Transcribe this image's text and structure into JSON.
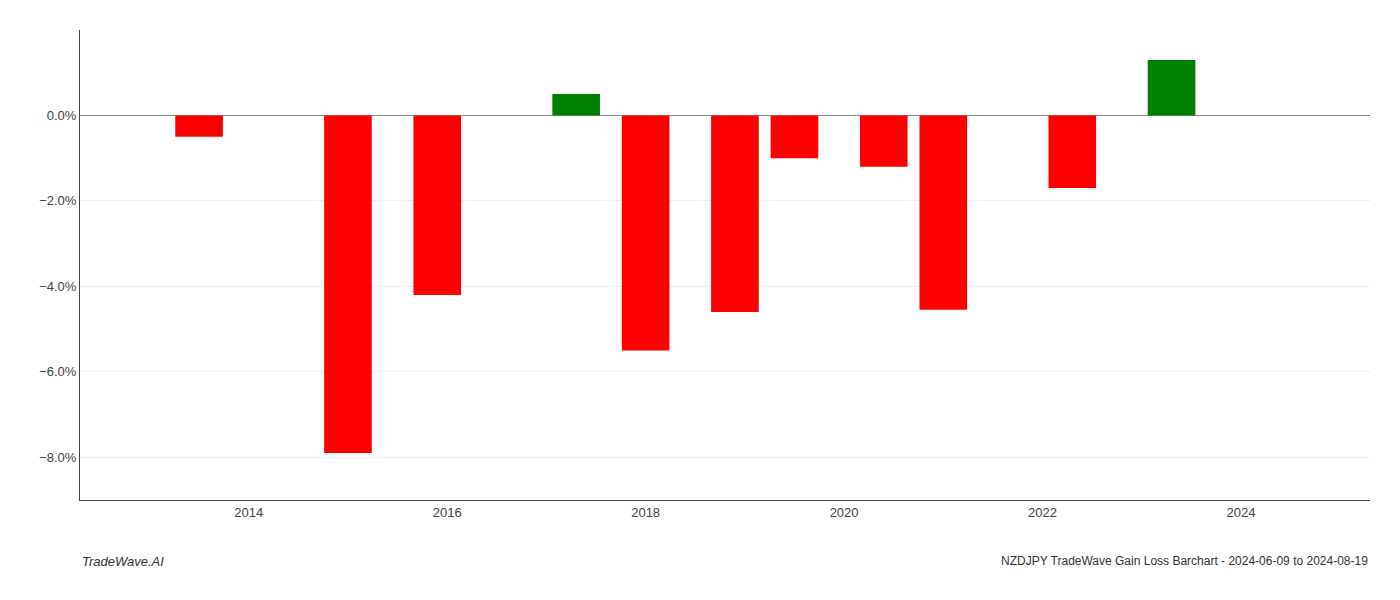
{
  "chart_data": {
    "type": "bar",
    "x": [
      2013.5,
      2015.0,
      2015.9,
      2017.3,
      2018.0,
      2018.9,
      2019.5,
      2020.4,
      2021.0,
      2022.3,
      2023.3
    ],
    "values": [
      -0.5,
      -7.9,
      -4.2,
      0.5,
      -5.5,
      -4.6,
      -1.0,
      -1.2,
      -4.55,
      -1.7,
      1.3
    ],
    "colors": [
      "#ff0000",
      "#ff0000",
      "#ff0000",
      "#008000",
      "#ff0000",
      "#ff0000",
      "#ff0000",
      "#ff0000",
      "#ff0000",
      "#ff0000",
      "#008000"
    ],
    "ylim": [
      -9.0,
      2.0
    ],
    "yticks": [
      {
        "value": 0.0,
        "label": "0.0%"
      },
      {
        "value": -2.0,
        "label": "−2.0%"
      },
      {
        "value": -4.0,
        "label": "−4.0%"
      },
      {
        "value": -6.0,
        "label": "−6.0%"
      },
      {
        "value": -8.0,
        "label": "−8.0%"
      }
    ],
    "xlim": [
      2012.3,
      2025.3
    ],
    "xticks": [
      2014,
      2016,
      2018,
      2020,
      2022,
      2024
    ],
    "grid": "y",
    "annotations": [
      "TradeWave.AI",
      "NZDJPY TradeWave Gain Loss Barchart - 2024-06-09 to 2024-08-19"
    ]
  }
}
